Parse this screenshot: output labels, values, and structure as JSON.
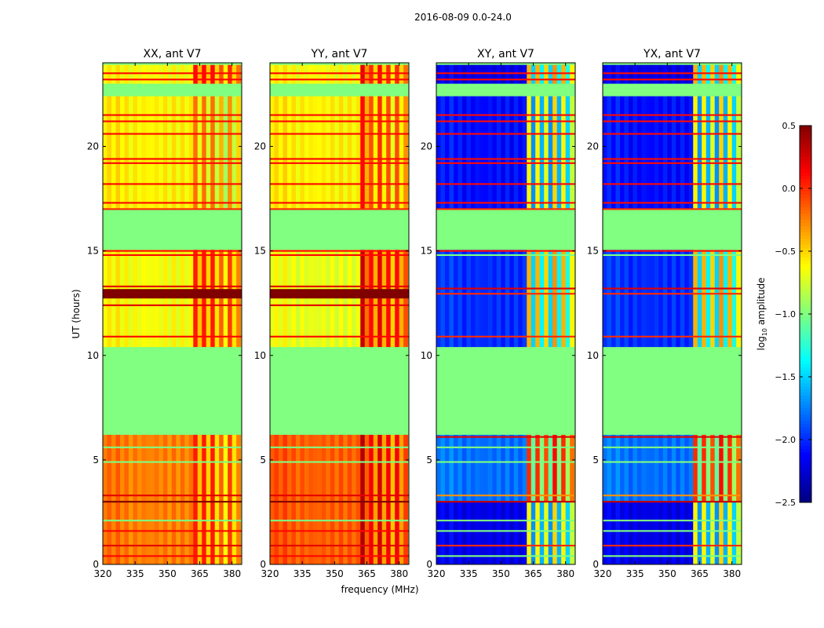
{
  "chart_data": {
    "type": "heatmap",
    "title": "2016-08-09 0.0-24.0",
    "xlabel": "frequency (MHz)",
    "ylabel": "UT (hours)",
    "xlim": [
      320,
      384.5
    ],
    "ylim": [
      0,
      24
    ],
    "xticks": [
      320,
      335,
      350,
      365,
      380
    ],
    "yticks": [
      0,
      5,
      10,
      15,
      20
    ],
    "colorbar": {
      "label": "log10 amplitude",
      "label_main": "log",
      "label_sub": "10",
      "label_rest": " amplitude",
      "range": [
        -2.5,
        0.5
      ],
      "ticks": [
        "0.5",
        "0.0",
        "−0.5",
        "−1.0",
        "−1.5",
        "−2.0",
        "−2.5"
      ],
      "tick_values": [
        0.5,
        0.0,
        -0.5,
        -1.0,
        -1.5,
        -2.0,
        -2.5
      ],
      "colormap": "jet"
    },
    "flag_value": -1.0,
    "rfi_start_mhz": 362,
    "panels": [
      {
        "title": "XX, ant V7",
        "low_stripe": [
          "auto"
        ],
        "segments": [
          [
            0,
            6.2,
            -0.25,
            0.05
          ],
          [
            10.4,
            15.05,
            -0.65,
            0.05
          ],
          [
            17.0,
            22.4,
            -0.6,
            -0.2
          ],
          [
            23.0,
            23.9,
            -0.65,
            0.1
          ]
        ],
        "stripe_offsets": [
          0,
          -0.5,
          0,
          -0.55,
          0,
          -0.6,
          -0.2,
          -0.7,
          -0.1,
          -0.6,
          -0.3
        ],
        "lines": [
          [
            0.4,
            0.1
          ],
          [
            0.9,
            0.2
          ],
          [
            1.6,
            0.1
          ],
          [
            2.1,
            -1.0
          ],
          [
            3.0,
            0.5
          ],
          [
            3.3,
            0.2
          ],
          [
            4.9,
            -1.0
          ],
          [
            5.6,
            -1.0
          ],
          [
            10.9,
            0.1
          ],
          [
            12.4,
            0.2
          ],
          [
            12.95,
            0.5
          ],
          [
            13.3,
            0.2
          ],
          [
            14.8,
            0.1
          ],
          [
            15.0,
            0.1
          ],
          [
            17.0,
            0.0
          ],
          [
            17.3,
            0.1
          ],
          [
            18.2,
            0.1
          ],
          [
            19.2,
            0.1
          ],
          [
            19.4,
            0.1
          ],
          [
            20.6,
            0.1
          ],
          [
            21.2,
            0.1
          ],
          [
            21.5,
            0.1
          ],
          [
            23.2,
            0.1
          ],
          [
            23.5,
            0.1
          ]
        ]
      },
      {
        "title": "YY, ant V7",
        "segments": [
          [
            0,
            6.2,
            -0.15,
            0.15
          ],
          [
            10.4,
            15.05,
            -0.7,
            0.1
          ],
          [
            17.0,
            22.4,
            -0.6,
            -0.1
          ],
          [
            23.0,
            23.9,
            -0.65,
            0.0
          ]
        ],
        "stripe_offsets": [
          0.2,
          -0.3,
          0,
          -0.5,
          0.1,
          -0.5,
          0,
          -0.6,
          0,
          -0.5,
          -0.2
        ],
        "lines": [
          [
            0.4,
            0.1
          ],
          [
            0.9,
            0.2
          ],
          [
            1.6,
            0.1
          ],
          [
            2.1,
            -1.0
          ],
          [
            3.0,
            0.5
          ],
          [
            3.3,
            0.2
          ],
          [
            4.9,
            -1.0
          ],
          [
            5.6,
            -1.0
          ],
          [
            10.9,
            0.1
          ],
          [
            12.4,
            0.2
          ],
          [
            12.95,
            0.5
          ],
          [
            13.3,
            0.2
          ],
          [
            14.8,
            0.1
          ],
          [
            15.0,
            0.1
          ],
          [
            17.0,
            0.0
          ],
          [
            17.3,
            0.1
          ],
          [
            18.2,
            0.1
          ],
          [
            19.2,
            0.1
          ],
          [
            19.4,
            0.1
          ],
          [
            20.6,
            0.1
          ],
          [
            21.2,
            0.1
          ],
          [
            21.5,
            0.1
          ],
          [
            23.2,
            0.1
          ],
          [
            23.5,
            0.1
          ]
        ]
      },
      {
        "title": "XY, ant V7",
        "segments": [
          [
            0,
            3.0,
            -2.2,
            -1.2
          ],
          [
            3.0,
            6.2,
            -1.8,
            -0.6
          ],
          [
            10.4,
            15.05,
            -2.0,
            -1.0
          ],
          [
            17.0,
            22.4,
            -2.1,
            -1.2
          ],
          [
            23.0,
            23.9,
            -2.2,
            -1.0
          ]
        ],
        "stripe_offsets": [
          0.6,
          -0.5,
          0.6,
          -0.4,
          0.5,
          -0.5,
          0.7,
          -0.4,
          0.6,
          -0.3,
          0.4
        ],
        "lines": [
          [
            0.4,
            -1.0
          ],
          [
            0.9,
            0.0
          ],
          [
            1.6,
            -1.0
          ],
          [
            2.1,
            -1.0
          ],
          [
            3.0,
            0.3
          ],
          [
            3.3,
            -0.3
          ],
          [
            4.9,
            -1.0
          ],
          [
            5.6,
            -1.0
          ],
          [
            6.1,
            0.2
          ],
          [
            10.9,
            0.0
          ],
          [
            12.95,
            0.0
          ],
          [
            13.2,
            0.2
          ],
          [
            14.8,
            -1.0
          ],
          [
            15.0,
            0.1
          ],
          [
            17.0,
            0.0
          ],
          [
            17.3,
            0.1
          ],
          [
            18.2,
            0.1
          ],
          [
            19.2,
            0.1
          ],
          [
            19.4,
            0.1
          ],
          [
            20.6,
            0.1
          ],
          [
            21.2,
            0.1
          ],
          [
            21.5,
            0.1
          ],
          [
            23.2,
            0.1
          ],
          [
            23.5,
            0.1
          ]
        ]
      },
      {
        "title": "YX, ant V7",
        "segments": [
          [
            0,
            3.0,
            -2.2,
            -1.2
          ],
          [
            3.0,
            6.2,
            -1.8,
            -0.6
          ],
          [
            10.4,
            15.05,
            -2.0,
            -1.0
          ],
          [
            17.0,
            22.4,
            -2.1,
            -1.2
          ],
          [
            23.0,
            23.9,
            -2.2,
            -1.0
          ]
        ],
        "stripe_offsets": [
          0.6,
          -0.5,
          0.6,
          -0.4,
          0.5,
          -0.5,
          0.7,
          -0.4,
          0.6,
          -0.3,
          0.4
        ],
        "lines": [
          [
            0.4,
            -1.0
          ],
          [
            0.9,
            0.0
          ],
          [
            1.6,
            -1.0
          ],
          [
            2.1,
            -1.0
          ],
          [
            3.0,
            0.3
          ],
          [
            3.3,
            -0.3
          ],
          [
            4.9,
            -1.0
          ],
          [
            5.6,
            -1.0
          ],
          [
            6.1,
            0.2
          ],
          [
            10.9,
            0.0
          ],
          [
            12.95,
            0.0
          ],
          [
            13.2,
            0.2
          ],
          [
            14.8,
            -1.0
          ],
          [
            15.0,
            0.1
          ],
          [
            17.0,
            0.0
          ],
          [
            17.3,
            0.1
          ],
          [
            18.2,
            0.1
          ],
          [
            19.2,
            0.1
          ],
          [
            19.4,
            0.1
          ],
          [
            20.6,
            0.1
          ],
          [
            21.2,
            0.1
          ],
          [
            21.5,
            0.1
          ],
          [
            23.2,
            0.1
          ],
          [
            23.5,
            0.1
          ]
        ]
      }
    ]
  }
}
